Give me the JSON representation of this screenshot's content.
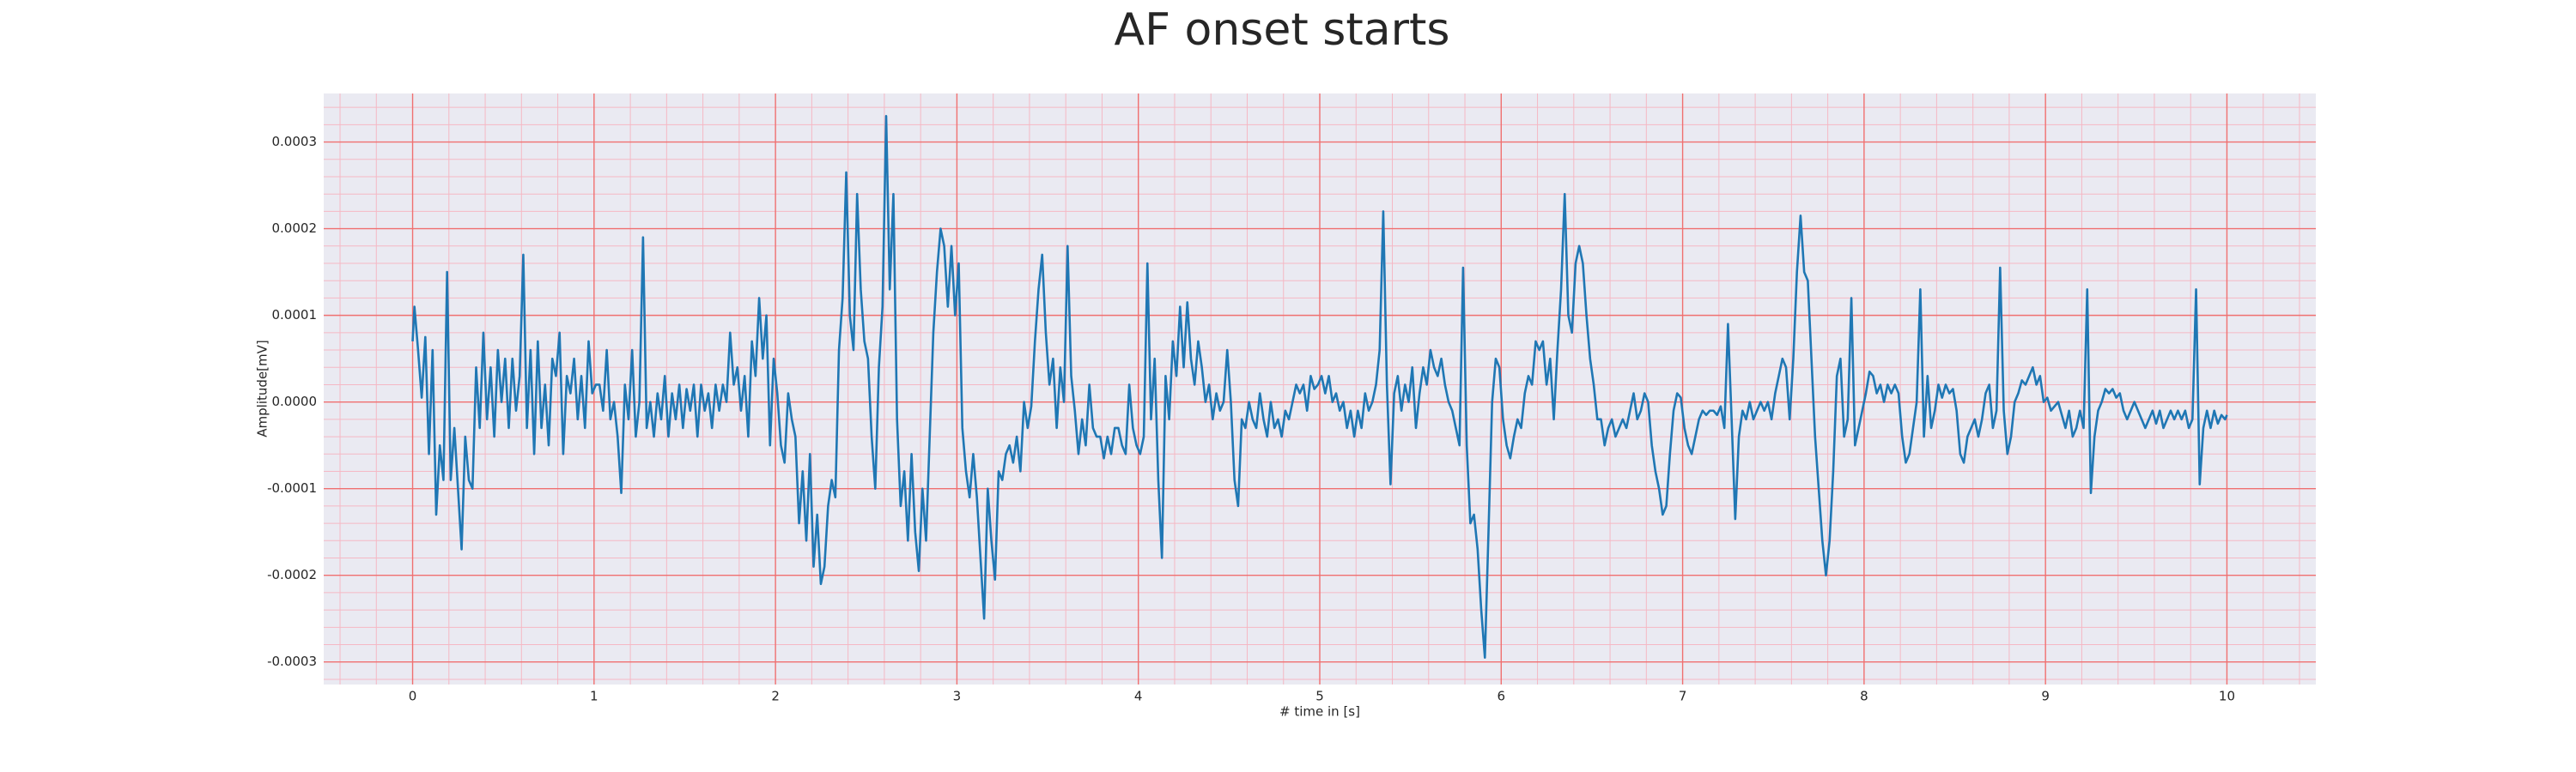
{
  "chart_data": {
    "type": "line",
    "title": "AF onset starts",
    "xlabel": "# time in [s]",
    "ylabel": "Amplitude[mV]",
    "color": "#1f77b4",
    "grid": true,
    "minor_grid": true,
    "xlim": [
      -0.49,
      10.49
    ],
    "ylim": [
      -0.000326,
      0.000356
    ],
    "xticks": [
      0,
      1,
      2,
      3,
      4,
      5,
      6,
      7,
      8,
      9,
      10
    ],
    "yticks": [
      -0.0003,
      -0.0002,
      -0.0001,
      {
        "value": 0,
        "label": "0.0000"
      },
      0.0001,
      0.0002,
      0.0003
    ],
    "x": [
      0,
      0.01,
      0.03,
      0.05,
      0.07,
      0.09,
      0.11,
      0.13,
      0.15,
      0.17,
      0.19,
      0.21,
      0.23,
      0.25,
      0.27,
      0.29,
      0.31,
      0.33,
      0.35,
      0.37,
      0.39,
      0.41,
      0.43,
      0.45,
      0.47,
      0.49,
      0.51,
      0.53,
      0.55,
      0.57,
      0.59,
      0.61,
      0.63,
      0.65,
      0.67,
      0.69,
      0.71,
      0.73,
      0.75,
      0.77,
      0.79,
      0.81,
      0.83,
      0.85,
      0.87,
      0.89,
      0.91,
      0.93,
      0.95,
      0.97,
      0.99,
      1.01,
      1.03,
      1.05,
      1.07,
      1.09,
      1.11,
      1.13,
      1.15,
      1.17,
      1.19,
      1.21,
      1.23,
      1.25,
      1.27,
      1.29,
      1.31,
      1.33,
      1.35,
      1.37,
      1.39,
      1.41,
      1.43,
      1.45,
      1.47,
      1.49,
      1.51,
      1.53,
      1.55,
      1.57,
      1.59,
      1.61,
      1.63,
      1.65,
      1.67,
      1.69,
      1.71,
      1.73,
      1.75,
      1.77,
      1.79,
      1.81,
      1.83,
      1.85,
      1.87,
      1.89,
      1.91,
      1.93,
      1.95,
      1.97,
      1.99,
      2.01,
      2.03,
      2.05,
      2.07,
      2.09,
      2.11,
      2.13,
      2.15,
      2.17,
      2.19,
      2.21,
      2.23,
      2.25,
      2.27,
      2.29,
      2.31,
      2.33,
      2.35,
      2.37,
      2.39,
      2.41,
      2.43,
      2.45,
      2.47,
      2.49,
      2.51,
      2.53,
      2.55,
      2.57,
      2.59,
      2.61,
      2.63,
      2.65,
      2.67,
      2.69,
      2.71,
      2.73,
      2.75,
      2.77,
      2.79,
      2.81,
      2.83,
      2.85,
      2.87,
      2.89,
      2.91,
      2.93,
      2.95,
      2.97,
      2.99,
      3.01,
      3.03,
      3.05,
      3.07,
      3.09,
      3.11,
      3.13,
      3.15,
      3.17,
      3.19,
      3.21,
      3.23,
      3.25,
      3.27,
      3.29,
      3.31,
      3.33,
      3.35,
      3.37,
      3.39,
      3.41,
      3.43,
      3.45,
      3.47,
      3.49,
      3.51,
      3.53,
      3.55,
      3.57,
      3.59,
      3.61,
      3.63,
      3.65,
      3.67,
      3.69,
      3.71,
      3.73,
      3.75,
      3.77,
      3.79,
      3.81,
      3.83,
      3.85,
      3.87,
      3.89,
      3.91,
      3.93,
      3.95,
      3.97,
      3.99,
      4.01,
      4.03,
      4.05,
      4.07,
      4.09,
      4.11,
      4.13,
      4.15,
      4.17,
      4.19,
      4.21,
      4.23,
      4.25,
      4.27,
      4.29,
      4.31,
      4.33,
      4.35,
      4.37,
      4.39,
      4.41,
      4.43,
      4.45,
      4.47,
      4.49,
      4.51,
      4.53,
      4.55,
      4.57,
      4.59,
      4.61,
      4.63,
      4.65,
      4.67,
      4.69,
      4.71,
      4.73,
      4.75,
      4.77,
      4.79,
      4.81,
      4.83,
      4.85,
      4.87,
      4.89,
      4.91,
      4.93,
      4.95,
      4.97,
      4.99,
      5.01,
      5.03,
      5.05,
      5.07,
      5.09,
      5.11,
      5.13,
      5.15,
      5.17,
      5.19,
      5.21,
      5.23,
      5.25,
      5.27,
      5.29,
      5.31,
      5.33,
      5.35,
      5.37,
      5.39,
      5.41,
      5.43,
      5.45,
      5.47,
      5.49,
      5.51,
      5.53,
      5.55,
      5.57,
      5.59,
      5.61,
      5.63,
      5.65,
      5.67,
      5.69,
      5.71,
      5.73,
      5.75,
      5.77,
      5.79,
      5.81,
      5.83,
      5.85,
      5.87,
      5.89,
      5.91,
      5.93,
      5.95,
      5.97,
      5.99,
      6.01,
      6.03,
      6.05,
      6.07,
      6.09,
      6.11,
      6.13,
      6.15,
      6.17,
      6.19,
      6.21,
      6.23,
      6.25,
      6.27,
      6.29,
      6.31,
      6.33,
      6.35,
      6.37,
      6.39,
      6.41,
      6.43,
      6.45,
      6.47,
      6.49,
      6.51,
      6.53,
      6.55,
      6.57,
      6.59,
      6.61,
      6.63,
      6.65,
      6.67,
      6.69,
      6.71,
      6.73,
      6.75,
      6.77,
      6.79,
      6.81,
      6.83,
      6.85,
      6.87,
      6.89,
      6.91,
      6.93,
      6.95,
      6.97,
      6.99,
      7.01,
      7.03,
      7.05,
      7.07,
      7.09,
      7.11,
      7.13,
      7.15,
      7.17,
      7.19,
      7.21,
      7.23,
      7.25,
      7.27,
      7.29,
      7.31,
      7.33,
      7.35,
      7.37,
      7.39,
      7.41,
      7.43,
      7.45,
      7.47,
      7.49,
      7.51,
      7.53,
      7.55,
      7.57,
      7.59,
      7.61,
      7.63,
      7.65,
      7.67,
      7.69,
      7.71,
      7.73,
      7.75,
      7.77,
      7.79,
      7.81,
      7.83,
      7.85,
      7.87,
      7.89,
      7.91,
      7.93,
      7.95,
      7.97,
      7.99,
      8.01,
      8.03,
      8.05,
      8.07,
      8.09,
      8.11,
      8.13,
      8.15,
      8.17,
      8.19,
      8.21,
      8.23,
      8.25,
      8.27,
      8.29,
      8.31,
      8.33,
      8.35,
      8.37,
      8.39,
      8.41,
      8.43,
      8.45,
      8.47,
      8.49,
      8.51,
      8.53,
      8.55,
      8.57,
      8.59,
      8.61,
      8.63,
      8.65,
      8.67,
      8.69,
      8.71,
      8.73,
      8.75,
      8.77,
      8.79,
      8.81,
      8.83,
      8.85,
      8.87,
      8.89,
      8.91,
      8.93,
      8.95,
      8.97,
      8.99,
      9.01,
      9.03,
      9.05,
      9.07,
      9.09,
      9.11,
      9.13,
      9.15,
      9.17,
      9.19,
      9.21,
      9.23,
      9.25,
      9.27,
      9.29,
      9.31,
      9.33,
      9.35,
      9.37,
      9.39,
      9.41,
      9.43,
      9.45,
      9.47,
      9.49,
      9.51,
      9.53,
      9.55,
      9.57,
      9.59,
      9.61,
      9.63,
      9.65,
      9.67,
      9.69,
      9.71,
      9.73,
      9.75,
      9.77,
      9.79,
      9.81,
      9.83,
      9.85,
      9.87,
      9.89,
      9.91,
      9.93,
      9.95,
      9.97,
      9.99,
      10
    ],
    "values": [
      7e-05,
      0.00011,
      6e-05,
      5e-06,
      7.5e-05,
      -6e-05,
      6e-05,
      -0.00013,
      -5e-05,
      -9e-05,
      0.00015,
      -9e-05,
      -3e-05,
      -0.0001,
      -0.00017,
      -4e-05,
      -9e-05,
      -0.0001,
      4e-05,
      -3e-05,
      8e-05,
      -2e-05,
      4e-05,
      -4e-05,
      6e-05,
      0,
      5e-05,
      -3e-05,
      5e-05,
      -1e-05,
      3e-05,
      0.00017,
      -3e-05,
      6e-05,
      -6e-05,
      7e-05,
      -3e-05,
      2e-05,
      -5e-05,
      5e-05,
      3e-05,
      8e-05,
      -6e-05,
      3e-05,
      1e-05,
      5e-05,
      -2e-05,
      3e-05,
      -3e-05,
      7e-05,
      1e-05,
      2e-05,
      2e-05,
      -1e-05,
      6e-05,
      -2e-05,
      0,
      -4e-05,
      -0.000105,
      2e-05,
      -2e-05,
      6e-05,
      -4e-05,
      0,
      0.00019,
      -3e-05,
      0,
      -4e-05,
      1e-05,
      -2e-05,
      3e-05,
      -4e-05,
      1e-05,
      -2e-05,
      2e-05,
      -3e-05,
      1.5e-05,
      -1e-05,
      2e-05,
      -4e-05,
      2e-05,
      -1e-05,
      1e-05,
      -3e-05,
      2e-05,
      -1e-05,
      2e-05,
      0,
      8e-05,
      2e-05,
      4e-05,
      -1e-05,
      3e-05,
      -4e-05,
      7e-05,
      3e-05,
      0.00012,
      5e-05,
      0.0001,
      -5e-05,
      5e-05,
      1e-05,
      -5e-05,
      -7e-05,
      1e-05,
      -2e-05,
      -4e-05,
      -0.00014,
      -8e-05,
      -0.00016,
      -6e-05,
      -0.00019,
      -0.00013,
      -0.00021,
      -0.00019,
      -0.00012,
      -9e-05,
      -0.00011,
      6e-05,
      0.00012,
      0.000265,
      0.0001,
      6e-05,
      0.00024,
      0.00013,
      7e-05,
      5e-05,
      -4e-05,
      -0.0001,
      4e-05,
      0.00011,
      0.00033,
      0.00013,
      0.00024,
      -2e-05,
      -0.00012,
      -8e-05,
      -0.00016,
      -6e-05,
      -0.00015,
      -0.000195,
      -0.0001,
      -0.00016,
      -4e-05,
      8e-05,
      0.00015,
      0.0002,
      0.00018,
      0.00011,
      0.00018,
      0.0001,
      0.00016,
      -3e-05,
      -8e-05,
      -0.00011,
      -6e-05,
      -0.00011,
      -0.00018,
      -0.00025,
      -0.0001,
      -0.00016,
      -0.000205,
      -8e-05,
      -9e-05,
      -6e-05,
      -5e-05,
      -7e-05,
      -4e-05,
      -8e-05,
      0,
      -3e-05,
      -5e-06,
      7e-05,
      0.00013,
      0.00017,
      8e-05,
      2e-05,
      5e-05,
      -3e-05,
      4e-05,
      0,
      0.00018,
      3e-05,
      -1e-05,
      -6e-05,
      -2e-05,
      -5e-05,
      2e-05,
      -3e-05,
      -4e-05,
      -4e-05,
      -6.5e-05,
      -4e-05,
      -6e-05,
      -3e-05,
      -3e-05,
      -5e-05,
      -6e-05,
      2e-05,
      -3e-05,
      -5e-05,
      -6e-05,
      -4e-05,
      0.00016,
      -2e-05,
      5e-05,
      -9e-05,
      -0.00018,
      3e-05,
      -2e-05,
      7e-05,
      3e-05,
      0.00011,
      4e-05,
      0.000115,
      5e-05,
      2e-05,
      7e-05,
      4e-05,
      0,
      2e-05,
      -2e-05,
      1e-05,
      -1e-05,
      0,
      6e-05,
      0,
      -9e-05,
      -0.00012,
      -2e-05,
      -3e-05,
      0,
      -2e-05,
      -3e-05,
      1e-05,
      -2e-05,
      -4e-05,
      0,
      -3e-05,
      -2e-05,
      -4e-05,
      -1e-05,
      -2e-05,
      0,
      2e-05,
      1e-05,
      2e-05,
      -1e-05,
      3e-05,
      1.5e-05,
      2e-05,
      3e-05,
      1e-05,
      3e-05,
      0,
      1e-05,
      -1e-05,
      0,
      -3e-05,
      -1e-05,
      -4e-05,
      -1e-05,
      -3e-05,
      1e-05,
      -1e-05,
      0,
      2e-05,
      6e-05,
      0.00022,
      2e-05,
      -9.5e-05,
      1e-05,
      3e-05,
      -1e-05,
      2e-05,
      0,
      4e-05,
      -3e-05,
      1e-05,
      4e-05,
      2e-05,
      6e-05,
      4e-05,
      3e-05,
      5e-05,
      2e-05,
      0,
      -1e-05,
      -3e-05,
      -5e-05,
      0.000155,
      -5e-05,
      -0.00014,
      -0.00013,
      -0.00017,
      -0.00024,
      -0.000295,
      -0.00015,
      0,
      5e-05,
      4e-05,
      -2e-05,
      -5e-05,
      -6.5e-05,
      -4e-05,
      -2e-05,
      -3e-05,
      1e-05,
      3e-05,
      2e-05,
      7e-05,
      6e-05,
      7e-05,
      2e-05,
      5e-05,
      -2e-05,
      6e-05,
      0.00013,
      0.00024,
      0.0001,
      8e-05,
      0.00016,
      0.00018,
      0.00016,
      0.0001,
      5e-05,
      2e-05,
      -2e-05,
      -2e-05,
      -5e-05,
      -3e-05,
      -2e-05,
      -4e-05,
      -3e-05,
      -2e-05,
      -3e-05,
      -1e-05,
      1e-05,
      -2e-05,
      -1e-05,
      1e-05,
      0,
      -5e-05,
      -8e-05,
      -0.0001,
      -0.00013,
      -0.00012,
      -6e-05,
      -1e-05,
      1e-05,
      5e-06,
      -3e-05,
      -5e-05,
      -6e-05,
      -4e-05,
      -2e-05,
      -1e-05,
      -1.5e-05,
      -1e-05,
      -1e-05,
      -1.5e-05,
      -5e-06,
      -3e-05,
      9e-05,
      -2e-05,
      -0.000135,
      -4e-05,
      -1e-05,
      -2e-05,
      0,
      -2e-05,
      -1e-05,
      0,
      -1e-05,
      0,
      -2e-05,
      1e-05,
      3e-05,
      5e-05,
      4e-05,
      -2e-05,
      5e-05,
      0.00015,
      0.000215,
      0.00015,
      0.00014,
      5e-05,
      -4e-05,
      -0.0001,
      -0.00016,
      -0.0002,
      -0.00016,
      -8e-05,
      3e-05,
      5e-05,
      -4e-05,
      -2e-05,
      0.00012,
      -5e-05,
      -3e-05,
      -1e-05,
      1e-05,
      3.5e-05,
      3e-05,
      1e-05,
      2e-05,
      0,
      2e-05,
      1e-05,
      2e-05,
      1e-05,
      -4e-05,
      -7e-05,
      -6e-05,
      -3e-05,
      0,
      0.00013,
      -4e-05,
      3e-05,
      -3e-05,
      -1e-05,
      2e-05,
      5e-06,
      2e-05,
      1e-05,
      1.5e-05,
      -1e-05,
      -6e-05,
      -7e-05,
      -4e-05,
      -3e-05,
      -2e-05,
      -4e-05,
      -2e-05,
      1e-05,
      2e-05,
      -3e-05,
      -1e-05,
      0.000155,
      -1e-05,
      -6e-05,
      -4e-05,
      0,
      1e-05,
      2.5e-05,
      2e-05,
      3e-05,
      4e-05,
      2e-05,
      3e-05,
      0,
      5e-06,
      -1e-05,
      -5e-06,
      0,
      -1.5e-05,
      -3e-05,
      -1e-05,
      -4e-05,
      -3e-05,
      -1e-05,
      -3e-05,
      0.00013,
      -0.000105,
      -4e-05,
      -1e-05,
      0,
      1.5e-05,
      1e-05,
      1.5e-05,
      5e-06,
      1e-05,
      -1e-05,
      -2e-05,
      -1e-05,
      0,
      -1e-05,
      -2e-05,
      -3e-05,
      -2e-05,
      -1e-05,
      -2.5e-05,
      -1e-05,
      -3e-05,
      -2e-05,
      -1e-05,
      -2e-05,
      -1e-05,
      -2e-05,
      -1e-05,
      -3e-05,
      -2e-05,
      0.00013,
      -9.5e-05,
      -3e-05,
      -1e-05,
      -3e-05,
      -1e-05,
      -2.5e-05,
      -1.5e-05,
      -2e-05,
      -1.5e-05
    ]
  }
}
